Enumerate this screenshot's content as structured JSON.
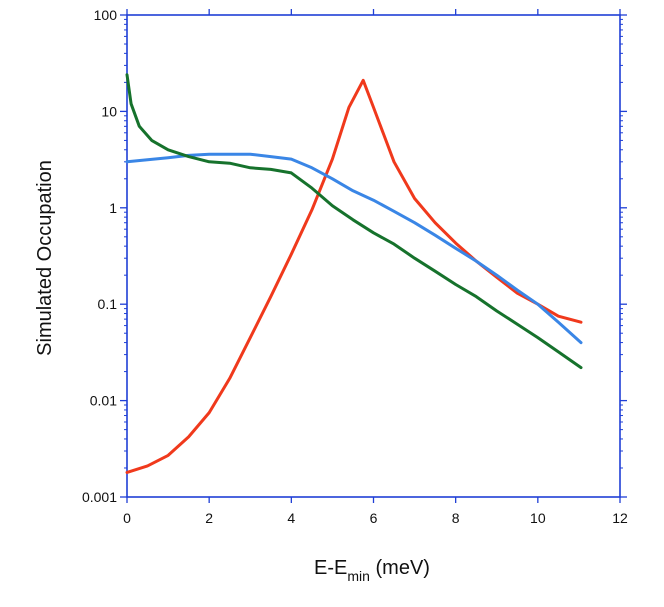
{
  "chart_data": {
    "type": "line",
    "title": "",
    "xlabel": {
      "main": "E-E",
      "subscript": "min",
      "unit": " (meV)"
    },
    "ylabel": "Simulated Occupation",
    "xlim": [
      0,
      12
    ],
    "ylim": [
      0.001,
      100
    ],
    "yscale": "log",
    "grid": false,
    "x_ticks": [
      0,
      2,
      4,
      6,
      8,
      10,
      12
    ],
    "x_tick_labels": [
      "0",
      "2",
      "4",
      "6",
      "8",
      "10",
      "12"
    ],
    "y_ticks": [
      0.001,
      0.01,
      0.1,
      1,
      10,
      100
    ],
    "y_tick_labels": [
      "0.001",
      "0.01",
      "0.1",
      "1",
      "10",
      "100"
    ],
    "axis_color": "#1f3fd6",
    "series": [
      {
        "name": "red",
        "color": "#f0391c",
        "points": [
          [
            0.0,
            0.0018
          ],
          [
            0.5,
            0.0021
          ],
          [
            1.0,
            0.0027
          ],
          [
            1.5,
            0.0042
          ],
          [
            2.0,
            0.0075
          ],
          [
            2.5,
            0.017
          ],
          [
            3.0,
            0.045
          ],
          [
            3.5,
            0.12
          ],
          [
            4.0,
            0.33
          ],
          [
            4.5,
            0.95
          ],
          [
            5.0,
            3.2
          ],
          [
            5.4,
            11.0
          ],
          [
            5.75,
            21.0
          ],
          [
            6.0,
            11.0
          ],
          [
            6.5,
            3.0
          ],
          [
            7.0,
            1.25
          ],
          [
            7.5,
            0.7
          ],
          [
            8.0,
            0.43
          ],
          [
            8.5,
            0.28
          ],
          [
            9.0,
            0.19
          ],
          [
            9.5,
            0.13
          ],
          [
            10.0,
            0.1
          ],
          [
            10.5,
            0.075
          ],
          [
            11.05,
            0.065
          ]
        ]
      },
      {
        "name": "blue",
        "color": "#3a86e6",
        "points": [
          [
            0.0,
            3.0
          ],
          [
            0.5,
            3.15
          ],
          [
            1.0,
            3.3
          ],
          [
            1.5,
            3.5
          ],
          [
            2.0,
            3.6
          ],
          [
            2.5,
            3.6
          ],
          [
            3.0,
            3.6
          ],
          [
            3.5,
            3.4
          ],
          [
            4.0,
            3.2
          ],
          [
            4.5,
            2.6
          ],
          [
            5.0,
            2.0
          ],
          [
            5.5,
            1.5
          ],
          [
            6.0,
            1.2
          ],
          [
            6.5,
            0.92
          ],
          [
            7.0,
            0.7
          ],
          [
            7.5,
            0.52
          ],
          [
            8.0,
            0.38
          ],
          [
            8.5,
            0.28
          ],
          [
            9.0,
            0.2
          ],
          [
            9.5,
            0.14
          ],
          [
            10.0,
            0.1
          ],
          [
            10.5,
            0.065
          ],
          [
            11.05,
            0.04
          ]
        ]
      },
      {
        "name": "green",
        "color": "#16722c",
        "points": [
          [
            0.0,
            24.0
          ],
          [
            0.1,
            12.0
          ],
          [
            0.3,
            7.0
          ],
          [
            0.6,
            5.0
          ],
          [
            1.0,
            4.0
          ],
          [
            1.5,
            3.4
          ],
          [
            2.0,
            3.0
          ],
          [
            2.5,
            2.9
          ],
          [
            3.0,
            2.6
          ],
          [
            3.5,
            2.5
          ],
          [
            4.0,
            2.3
          ],
          [
            4.5,
            1.6
          ],
          [
            5.0,
            1.05
          ],
          [
            5.5,
            0.75
          ],
          [
            6.0,
            0.55
          ],
          [
            6.5,
            0.42
          ],
          [
            7.0,
            0.3
          ],
          [
            7.5,
            0.22
          ],
          [
            8.0,
            0.16
          ],
          [
            8.5,
            0.12
          ],
          [
            9.0,
            0.085
          ],
          [
            9.5,
            0.062
          ],
          [
            10.0,
            0.045
          ],
          [
            10.5,
            0.032
          ],
          [
            11.05,
            0.022
          ]
        ]
      }
    ]
  }
}
